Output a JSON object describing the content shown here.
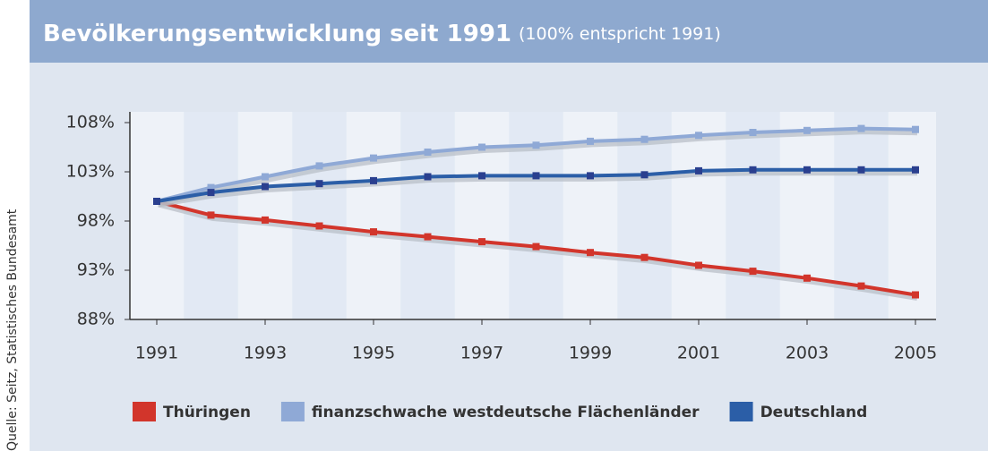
{
  "chart_data": {
    "type": "line",
    "title": "Bevölkerungsentwicklung seit 1991",
    "subtitle": "(100% entspricht 1991)",
    "source": "Quelle: Seitz, Statistisches Bundesamt",
    "x": [
      1991,
      1992,
      1993,
      1994,
      1995,
      1996,
      1997,
      1998,
      1999,
      2000,
      2001,
      2002,
      2003,
      2004,
      2005
    ],
    "xlim": [
      1991,
      2005
    ],
    "xticks": [
      1991,
      1993,
      1995,
      1997,
      1999,
      2001,
      2003,
      2005
    ],
    "ylim": [
      88,
      108
    ],
    "yticks": [
      {
        "value": 88,
        "label": "88%"
      },
      {
        "value": 93,
        "label": "93%"
      },
      {
        "value": 98,
        "label": "98%"
      },
      {
        "value": 103,
        "label": "103%"
      },
      {
        "value": 108,
        "label": "108%"
      }
    ],
    "series": [
      {
        "name": "Thüringen",
        "color": "#d2352b",
        "values": [
          100,
          98.6,
          98.1,
          97.5,
          96.9,
          96.4,
          95.9,
          95.4,
          94.8,
          94.3,
          93.5,
          92.9,
          92.2,
          91.4,
          90.5
        ]
      },
      {
        "name": "finanzschwache westdeutsche Flächenländer",
        "color": "#8fa9d6",
        "values": [
          100,
          101.4,
          102.5,
          103.6,
          104.4,
          105.0,
          105.5,
          105.7,
          106.1,
          106.3,
          106.7,
          107.0,
          107.2,
          107.4,
          107.3
        ]
      },
      {
        "name": "Deutschland",
        "color": "#2b5ea7",
        "values": [
          100,
          100.9,
          101.5,
          101.8,
          102.1,
          102.5,
          102.6,
          102.6,
          102.6,
          102.7,
          103.1,
          103.2,
          103.2,
          103.2,
          103.2
        ]
      }
    ]
  }
}
